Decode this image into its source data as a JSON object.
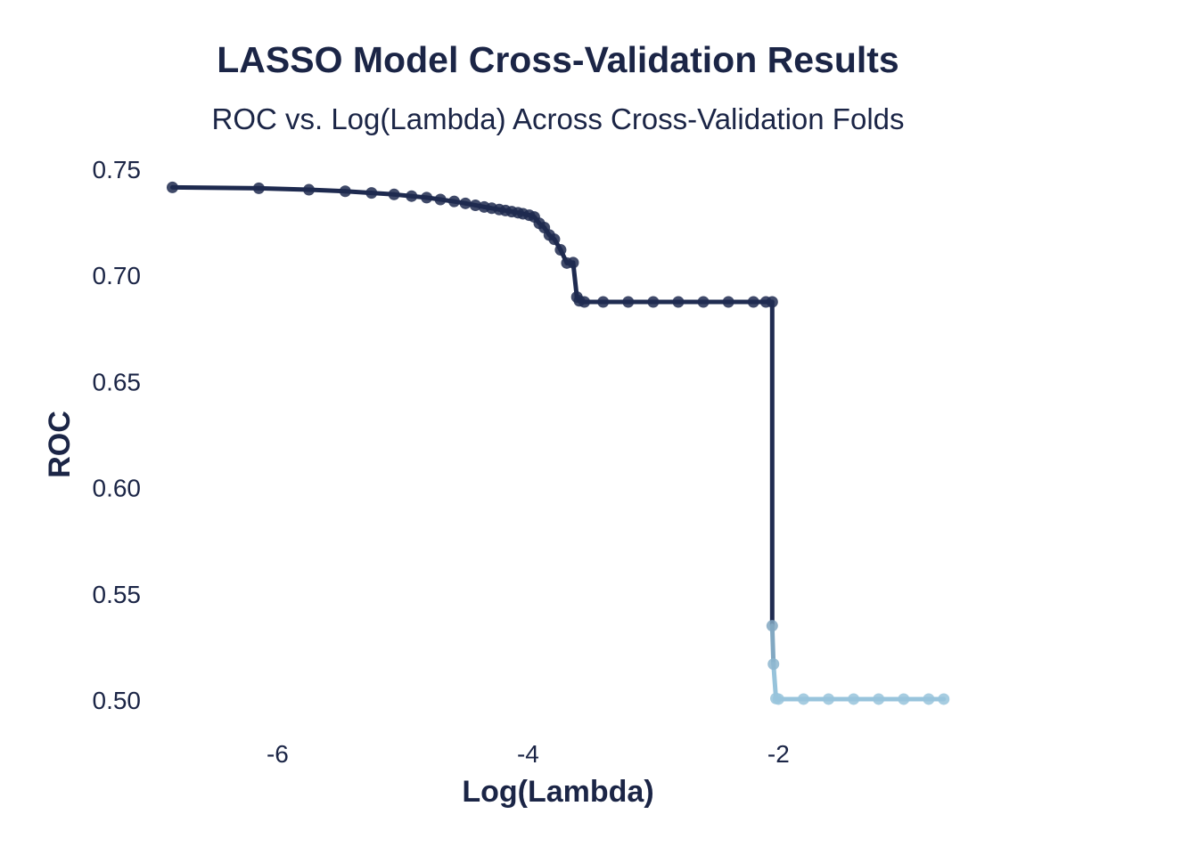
{
  "chart_data": {
    "type": "line",
    "title": "LASSO Model Cross-Validation Results",
    "subtitle": "ROC vs. Log(Lambda) Across Cross-Validation Folds",
    "xlabel": "Log(Lambda)",
    "ylabel": "ROC",
    "xlim": [
      -6.95,
      -0.6
    ],
    "ylim": [
      0.49,
      0.755
    ],
    "x_ticks": [
      -6,
      -4,
      -2
    ],
    "x_tick_labels": [
      "-6",
      "-4",
      "-2"
    ],
    "y_ticks": [
      0.5,
      0.55,
      0.6,
      0.65,
      0.7,
      0.75
    ],
    "y_tick_labels": [
      "0.50",
      "0.55",
      "0.60",
      "0.65",
      "0.70",
      "0.75"
    ],
    "grid": false,
    "legend": "none",
    "colors": {
      "high": "#1e2a4f",
      "low": "#98c4dc",
      "text": "#1b2546"
    },
    "series": [
      {
        "color_scale": [
          "#98c4dc",
          "#1e2a4f"
        ],
        "x": [
          -6.84,
          -6.15,
          -5.75,
          -5.46,
          -5.25,
          -5.07,
          -4.93,
          -4.81,
          -4.7,
          -4.59,
          -4.5,
          -4.42,
          -4.35,
          -4.29,
          -4.23,
          -4.18,
          -4.13,
          -4.08,
          -4.04,
          -3.99,
          -3.95,
          -3.91,
          -3.87,
          -3.83,
          -3.79,
          -3.74,
          -3.69,
          -3.64,
          -3.61,
          -3.59,
          -3.55,
          -3.4,
          -3.2,
          -3.0,
          -2.8,
          -2.6,
          -2.4,
          -2.2,
          -2.1,
          -2.05,
          -2.05,
          -2.04,
          -2.02,
          -2.0,
          -1.8,
          -1.6,
          -1.4,
          -1.2,
          -1.0,
          -0.8,
          -0.68
        ],
        "y": [
          0.7414,
          0.741,
          0.7403,
          0.7396,
          0.7388,
          0.7381,
          0.7373,
          0.7366,
          0.7357,
          0.7348,
          0.7339,
          0.733,
          0.7322,
          0.7316,
          0.731,
          0.7305,
          0.73,
          0.7295,
          0.729,
          0.7283,
          0.7275,
          0.7245,
          0.7225,
          0.719,
          0.717,
          0.712,
          0.7058,
          0.706,
          0.6898,
          0.688,
          0.6875,
          0.6875,
          0.6875,
          0.6875,
          0.6875,
          0.6875,
          0.6875,
          0.6875,
          0.6875,
          0.6875,
          0.535,
          0.517,
          0.5008,
          0.5005,
          0.5005,
          0.5005,
          0.5005,
          0.5005,
          0.5005,
          0.5005,
          0.5005
        ]
      }
    ]
  }
}
